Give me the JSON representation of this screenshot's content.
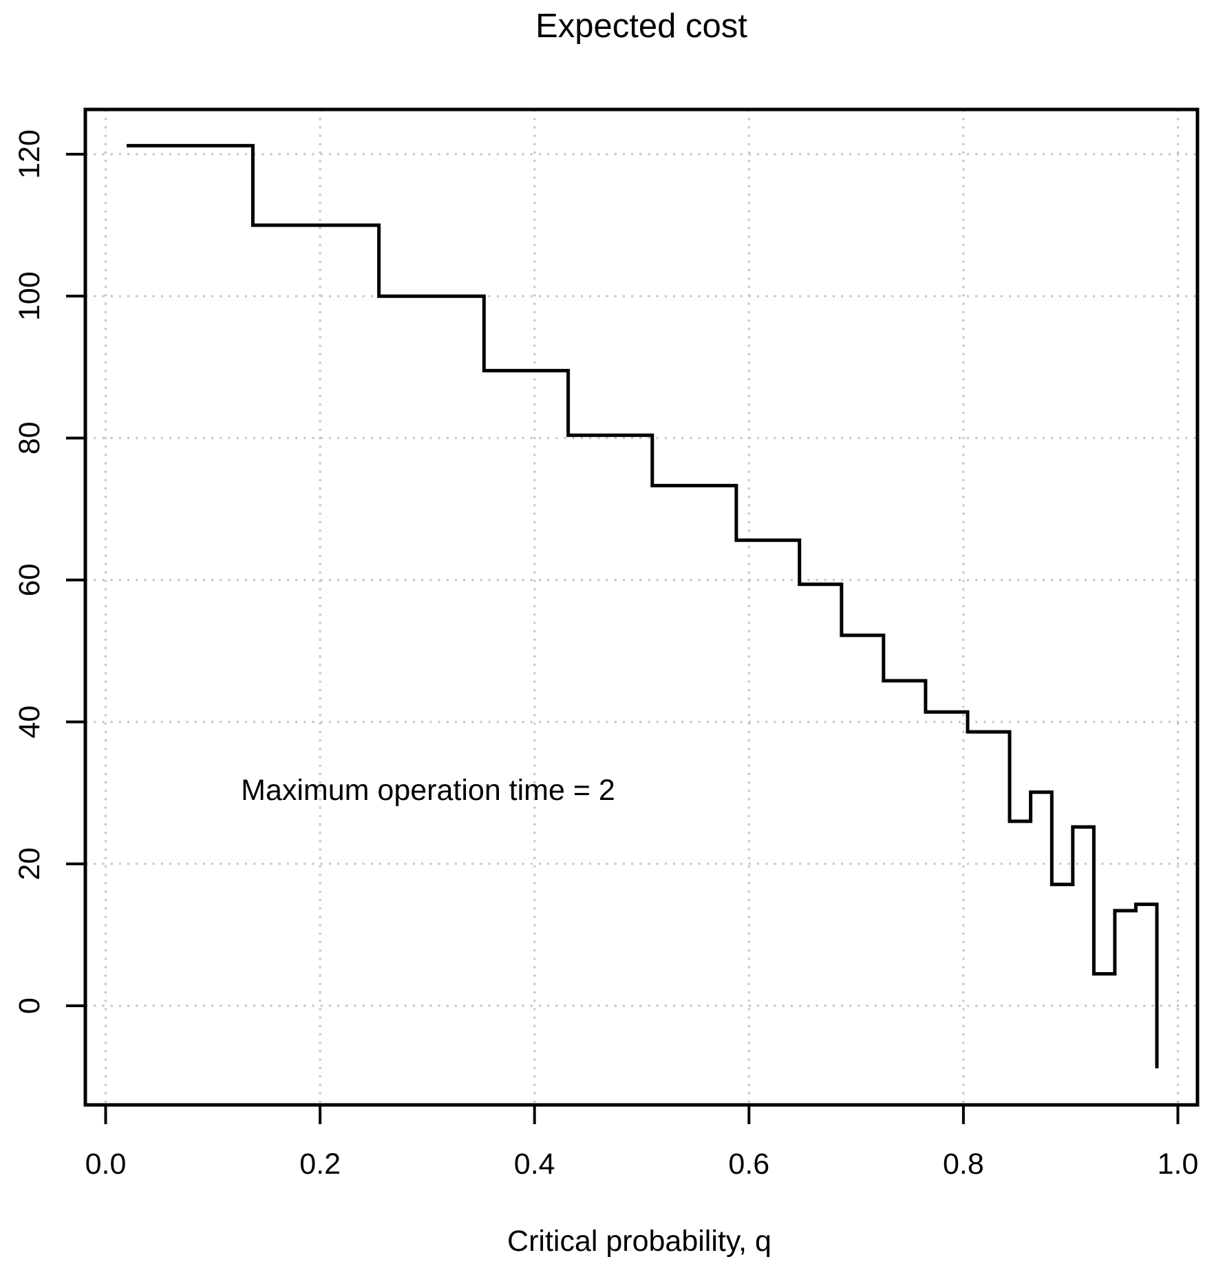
{
  "page": {
    "background": "#ffffff"
  },
  "chart_data": {
    "type": "line",
    "subtype": "step-pre",
    "title": "Expected cost",
    "xlabel": "Critical probability, q",
    "ylabel": "",
    "annotation": {
      "text": "Maximum operation time = 2",
      "x": 0.3,
      "y": 30.5
    },
    "x": [
      0.0196,
      0.1373,
      0.2549,
      0.3529,
      0.4314,
      0.5098,
      0.5882,
      0.6471,
      0.6863,
      0.7255,
      0.7647,
      0.8039,
      0.8431,
      0.8627,
      0.8824,
      0.902,
      0.9216,
      0.9412,
      0.9608,
      0.9804
    ],
    "y": [
      121.2,
      110.0,
      100.0,
      89.5,
      80.4,
      73.3,
      65.6,
      59.4,
      52.2,
      45.8,
      41.4,
      38.6,
      26.0,
      30.1,
      17.1,
      25.2,
      4.5,
      13.4,
      14.3,
      -8.8
    ],
    "x_ticks": {
      "values": [
        0.0,
        0.2,
        0.4,
        0.6,
        0.8,
        1.0
      ],
      "labels": [
        "0.0",
        "0.2",
        "0.4",
        "0.6",
        "0.8",
        "1.0"
      ]
    },
    "y_ticks": {
      "values": [
        0,
        20,
        40,
        60,
        80,
        100,
        120
      ],
      "labels": [
        "0",
        "20",
        "40",
        "60",
        "80",
        "100",
        "120"
      ]
    },
    "xlim": [
      0,
      1
    ],
    "ylim": [
      -14,
      126
    ],
    "grid": true,
    "legend": "none",
    "line_color": "#000000",
    "axis_color": "#000000",
    "grid_color": "#c6c6c6",
    "background_color": "#ffffff"
  }
}
